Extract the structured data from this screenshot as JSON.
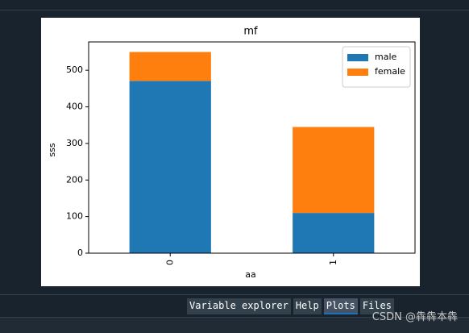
{
  "chart_data": {
    "type": "stacked_bar",
    "title": "mf",
    "x_label": "aa",
    "y_label": "sss",
    "categories": [
      "0",
      "1"
    ],
    "series": [
      {
        "name": "male",
        "color": "#1f77b4",
        "values": [
          471,
          110
        ]
      },
      {
        "name": "female",
        "color": "#ff7f0e",
        "values": [
          79,
          235
        ]
      }
    ],
    "xlim": [
      -0.5,
      1.5
    ],
    "ylim": [
      0,
      577.5
    ],
    "yticks": [
      0,
      100,
      200,
      300,
      400,
      500
    ],
    "legend": "upper right",
    "grid": false
  },
  "tabs": [
    "Variable explorer",
    "Help",
    "Plots",
    "Files"
  ],
  "watermark": "CSDN @犇犇本犇"
}
